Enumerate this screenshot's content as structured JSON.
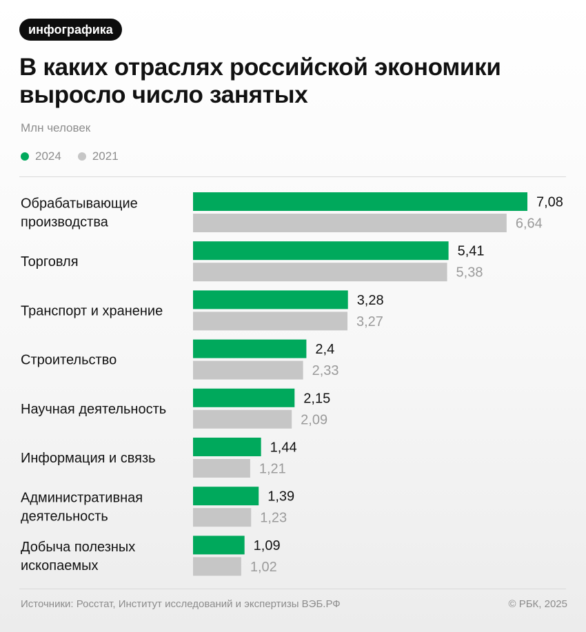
{
  "badge": "инфографика",
  "title": "В каких отраслях российской экономики выросло число занятых",
  "unit": "Млн человек",
  "legend": [
    {
      "label": "2024",
      "color": "#00a95c"
    },
    {
      "label": "2021",
      "color": "#c6c6c6"
    }
  ],
  "chart_data": {
    "type": "bar",
    "orientation": "horizontal",
    "categories": [
      [
        "Обрабатывающие",
        "производства"
      ],
      [
        "Торговля"
      ],
      [
        "Транспорт и хранение"
      ],
      [
        "Строительство"
      ],
      [
        "Научная деятельность"
      ],
      [
        "Информация и связь"
      ],
      [
        "Административная",
        "деятельность"
      ],
      [
        "Добыча полезных",
        "ископаемых"
      ]
    ],
    "series": [
      {
        "name": "2024",
        "color": "#00a95c",
        "values": [
          7.08,
          5.41,
          3.28,
          2.4,
          2.15,
          1.44,
          1.39,
          1.09
        ],
        "labels": [
          "7,08",
          "5,41",
          "3,28",
          "2,4",
          "2,15",
          "1,44",
          "1,39",
          "1,09"
        ]
      },
      {
        "name": "2021",
        "color": "#c6c6c6",
        "values": [
          6.64,
          5.38,
          3.27,
          2.33,
          2.09,
          1.21,
          1.23,
          1.02
        ],
        "labels": [
          "6,64",
          "5,38",
          "3,27",
          "2,33",
          "2,09",
          "1,21",
          "1,23",
          "1,02"
        ]
      }
    ],
    "xlim": [
      0,
      7.08
    ]
  },
  "footer": {
    "source": "Источники: Росстат, Институт исследований и экспертизы ВЭБ.РФ",
    "copyright": "© РБК, 2025"
  }
}
